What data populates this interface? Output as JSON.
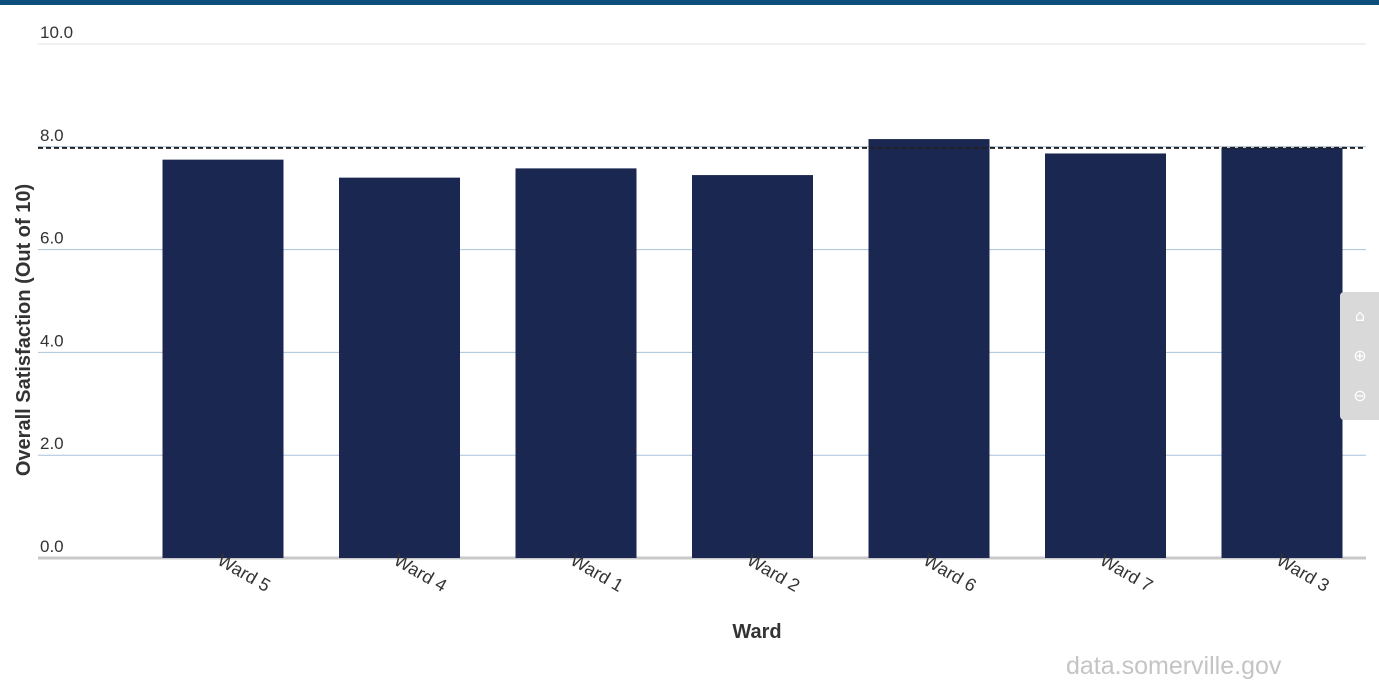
{
  "colors": {
    "header_bar": "#0b4f7a",
    "bar": "#1a2751",
    "grid": "#a9c2d8",
    "threshold": "#222222"
  },
  "source": "data.somerville.gov",
  "zoom_controls": [
    {
      "name": "home",
      "icon": "home-icon",
      "glyph": "⌂"
    },
    {
      "name": "zoom-in",
      "icon": "zoom-in-icon",
      "glyph": "⊕"
    },
    {
      "name": "zoom-out",
      "icon": "zoom-out-icon",
      "glyph": "⊖"
    }
  ],
  "chart_data": {
    "type": "bar",
    "categories": [
      "Ward 5",
      "Ward 4",
      "Ward 1",
      "Ward 2",
      "Ward 6",
      "Ward 7",
      "Ward 3"
    ],
    "values": [
      7.75,
      7.4,
      7.58,
      7.45,
      8.15,
      7.87,
      7.98
    ],
    "xlabel": "Ward",
    "ylabel": "Overall Satisfaction (Out of 10)",
    "ylim": [
      0,
      10
    ],
    "yticks": [
      "0.0",
      "2.0",
      "4.0",
      "6.0",
      "8.0",
      "10.0"
    ],
    "ytick_values": [
      0,
      2,
      4,
      6,
      8,
      10
    ],
    "reference_line": {
      "value": 7.98,
      "style": "dashed"
    },
    "grid": true,
    "legend": "none"
  }
}
